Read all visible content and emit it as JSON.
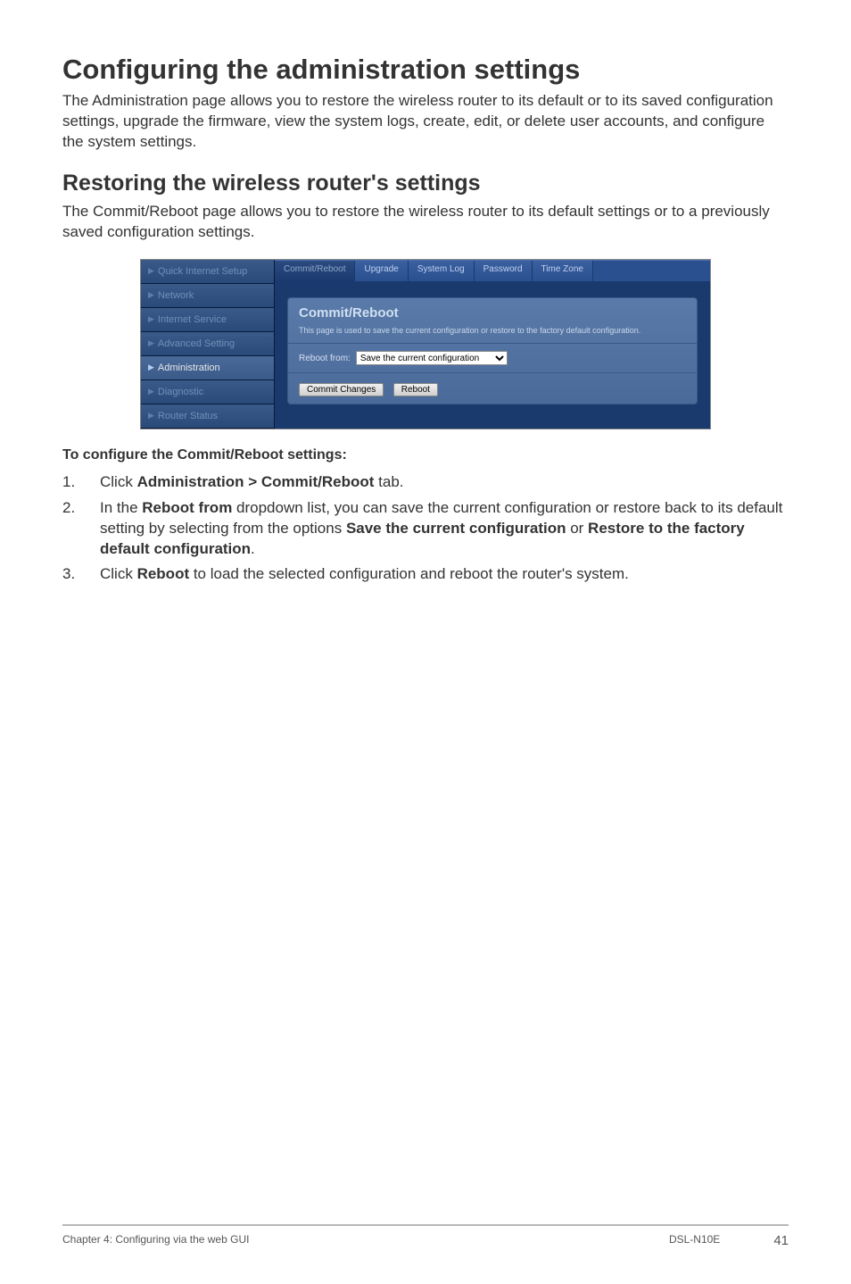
{
  "heading1": "Configuring the administration settings",
  "intro": "The Administration page allows you to restore the wireless router to its default or to its saved configuration settings, upgrade the firmware, view the system logs, create, edit, or delete user accounts, and configure the system settings.",
  "heading2": "Restoring the wireless router's settings",
  "subIntro": "The Commit/Reboot page allows you to restore the wireless router to its default settings or to a previously saved configuration settings.",
  "screenshot": {
    "sidebar": [
      {
        "label": "Quick Internet Setup",
        "active": false
      },
      {
        "label": "Network",
        "active": false
      },
      {
        "label": "Internet Service",
        "active": false
      },
      {
        "label": "Advanced Setting",
        "active": false
      },
      {
        "label": "Administration",
        "active": true
      },
      {
        "label": "Diagnostic",
        "active": false
      },
      {
        "label": "Router Status",
        "active": false
      }
    ],
    "tabs": [
      {
        "label": "Commit/Reboot",
        "active": true
      },
      {
        "label": "Upgrade",
        "active": false
      },
      {
        "label": "System Log",
        "active": false
      },
      {
        "label": "Password",
        "active": false
      },
      {
        "label": "Time Zone",
        "active": false
      }
    ],
    "panelTitle": "Commit/Reboot",
    "panelDesc": "This page is used to save the current configuration or restore to the factory default configuration.",
    "rebootLabel": "Reboot from:",
    "rebootOption": "Save the current configuration",
    "commitBtn": "Commit Changes",
    "rebootBtn": "Reboot"
  },
  "stepsLabel": "To configure the Commit/Reboot settings:",
  "steps": {
    "s1a": "Click ",
    "s1b": "Administration > Commit/Reboot",
    "s1c": " tab.",
    "s2a": "In the ",
    "s2b": "Reboot from",
    "s2c": " dropdown list, you can save the current configuration or restore back to its default setting by selecting from the options ",
    "s2d": "Save the current configuration",
    "s2e": " or ",
    "s2f": "Restore to the factory default configuration",
    "s2g": ".",
    "s3a": "Click ",
    "s3b": "Reboot",
    "s3c": " to load the selected configuration and reboot the router's system."
  },
  "footer": {
    "left": "Chapter 4: Configuring via the web GUI",
    "model": "DSL-N10E",
    "page": "41"
  }
}
